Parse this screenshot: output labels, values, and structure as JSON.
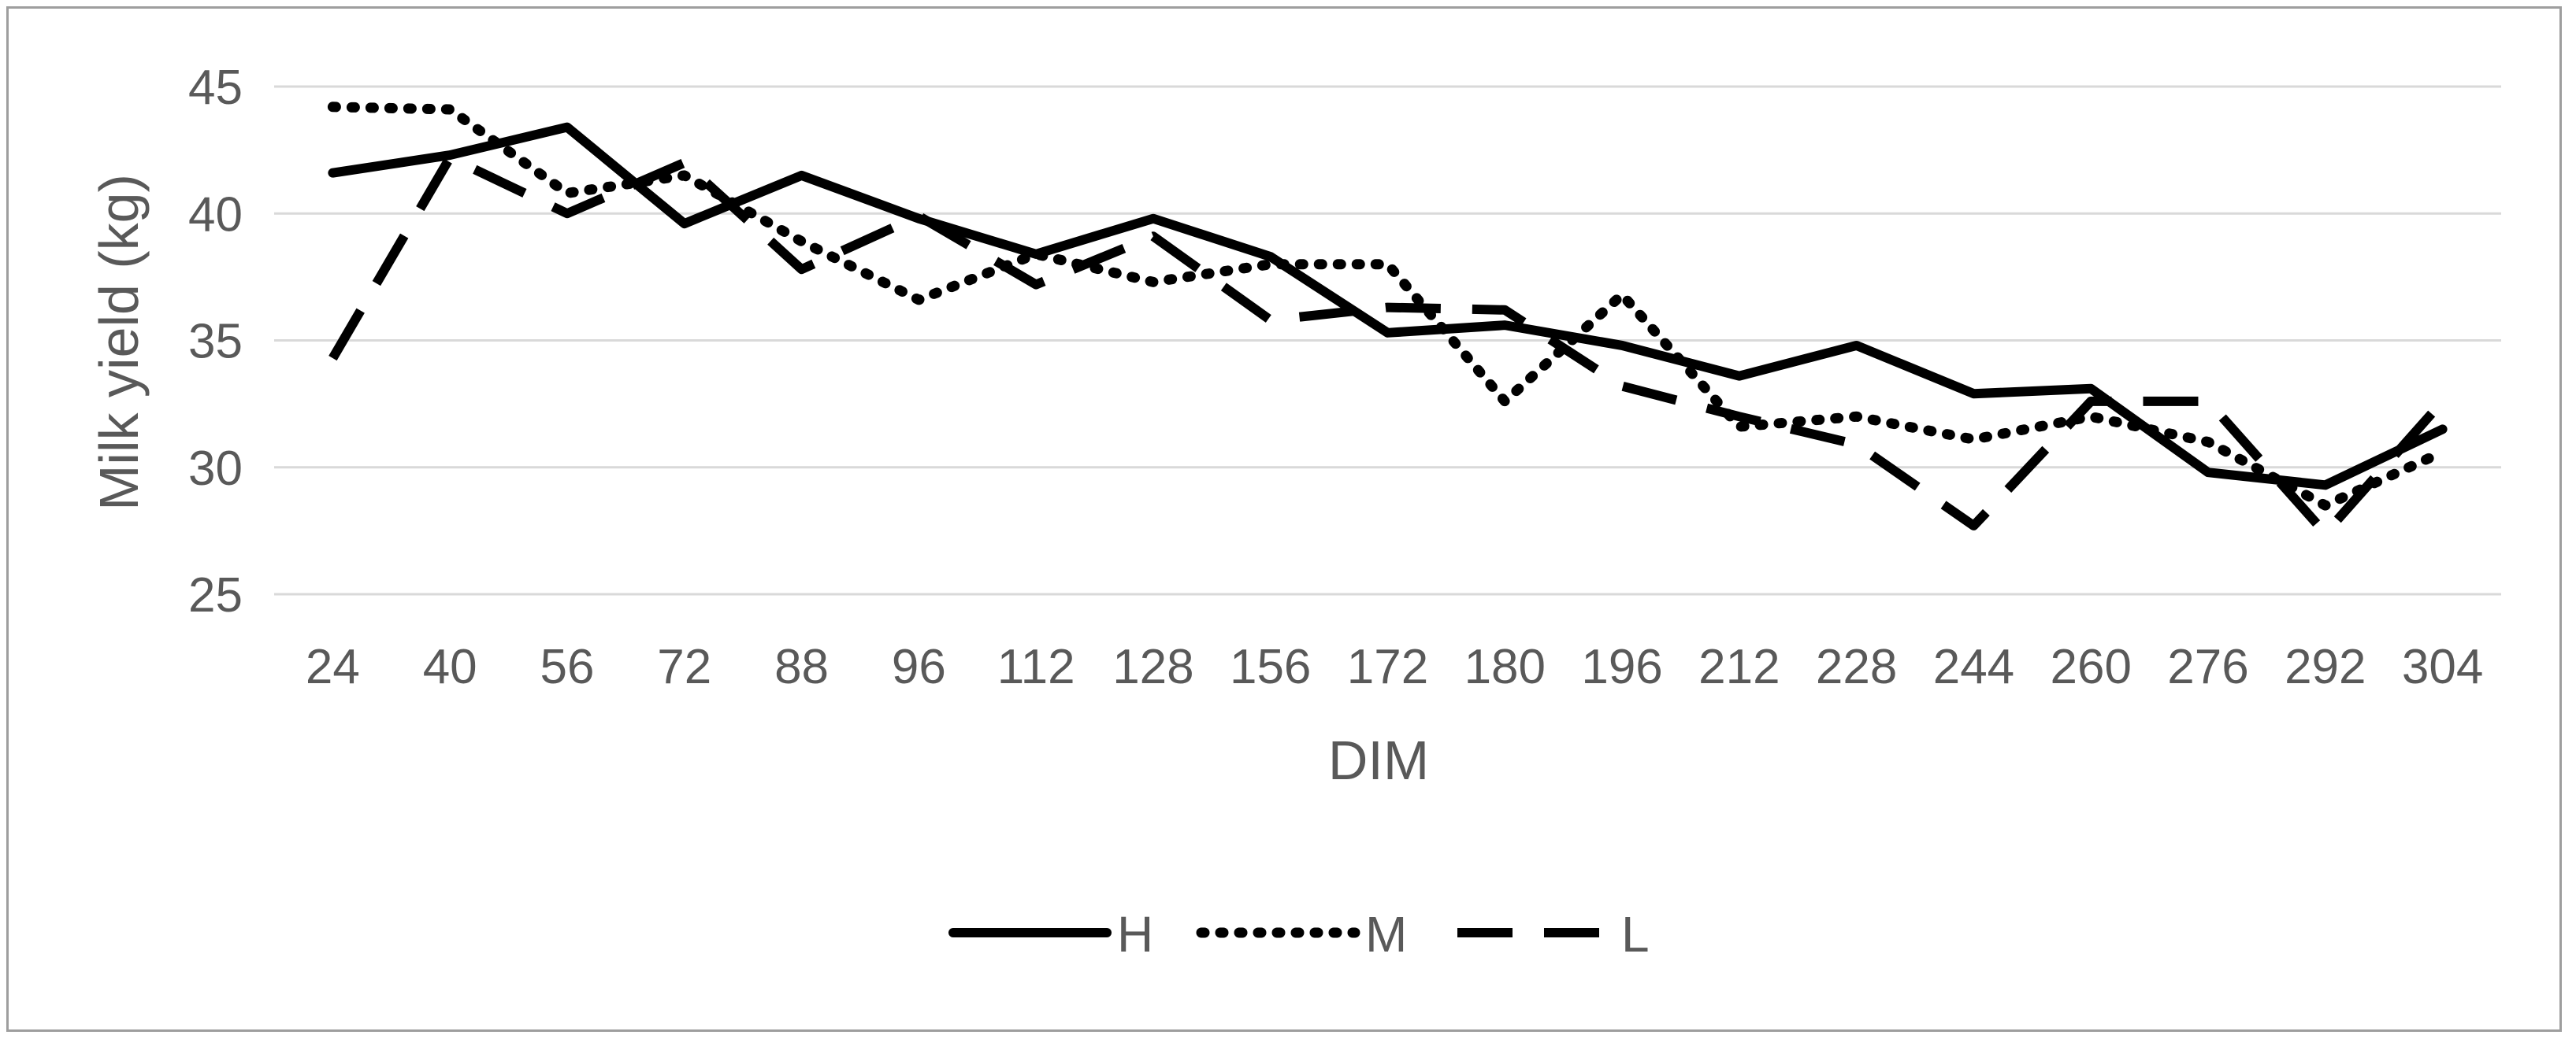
{
  "chart_data": {
    "type": "line",
    "title": "",
    "xlabel": "DIM",
    "ylabel": "Milk yield (kg)",
    "categories": [
      "24",
      "40",
      "56",
      "72",
      "88",
      "96",
      "112",
      "128",
      "156",
      "172",
      "180",
      "196",
      "212",
      "228",
      "244",
      "260",
      "276",
      "292",
      "304"
    ],
    "ylim": [
      25,
      45
    ],
    "yticks": [
      "25",
      "30",
      "35",
      "40",
      "45"
    ],
    "grid": "horizontal",
    "legend_position": "bottom",
    "colors": {
      "line": "#000000",
      "grid": "#d9d9d9",
      "text": "#595959",
      "border": "#9e9e9e"
    },
    "series": [
      {
        "name": "H",
        "style": "solid",
        "values": [
          41.6,
          42.3,
          43.4,
          39.6,
          41.5,
          39.8,
          38.4,
          39.8,
          38.3,
          35.3,
          35.6,
          34.8,
          33.6,
          34.8,
          32.9,
          33.1,
          29.8,
          29.3,
          31.5
        ]
      },
      {
        "name": "M",
        "style": "dotted",
        "values": [
          44.2,
          44.1,
          40.8,
          41.5,
          38.9,
          36.6,
          38.4,
          37.3,
          38.0,
          38.0,
          32.6,
          36.8,
          31.6,
          32.0,
          31.1,
          32.0,
          31.0,
          28.5,
          30.6
        ]
      },
      {
        "name": "L",
        "style": "dashed",
        "values": [
          34.3,
          42.2,
          40.0,
          42.0,
          37.8,
          39.9,
          37.2,
          39.1,
          35.8,
          36.3,
          36.2,
          33.2,
          32.0,
          30.9,
          27.7,
          32.6,
          32.6,
          27.4,
          32.6
        ]
      }
    ]
  }
}
